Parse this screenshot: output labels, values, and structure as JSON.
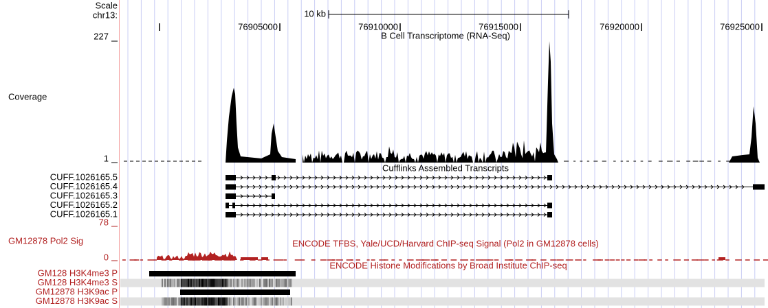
{
  "ruler": {
    "scale_label": "Scale",
    "chrom_label": "chr13:",
    "scale_bar_label": "10 kb",
    "positions": [
      76905000,
      76910000,
      76915000,
      76920000,
      76925000
    ]
  },
  "coverage_track": {
    "title": "B Cell Transcriptome (RNA-Seq)",
    "label": "Coverage",
    "max": 227,
    "min": 1
  },
  "transcripts_track": {
    "title": "Cufflinks Assembled Transcripts",
    "transcripts": [
      "CUFF.1026165.5",
      "CUFF.1026165.4",
      "CUFF.1026165.3",
      "CUFF.1026165.2",
      "CUFF.1026165.1"
    ]
  },
  "tfbs_track": {
    "title": "ENCODE TFBS, Yale/UCD/Harvard ChIP-seq Signal (Pol2 in GM12878 cells)",
    "label": "GM12878 Pol2 Sig",
    "max": 78,
    "min": 0
  },
  "histone_track": {
    "title": "ENCODE Histone Modifications by Broad Institute ChIP-seq",
    "tracks": [
      "GM128 H3K4me3 P",
      "GM128 H3K4me3 S",
      "GM12878 H3K9ac P",
      "GM12878 H3K9ac S"
    ]
  }
}
